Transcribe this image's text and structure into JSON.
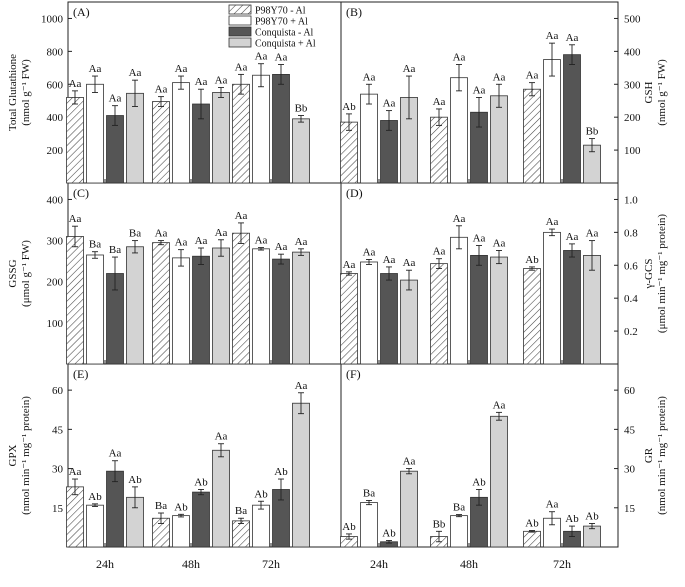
{
  "legend": [
    {
      "name": "P98Y70 - Al",
      "fill": "hatch"
    },
    {
      "name": "P98Y70 + Al",
      "fill": "#ffffff"
    },
    {
      "name": "Conquista - Al",
      "fill": "#555555"
    },
    {
      "name": "Conquista + Al",
      "fill": "#d3d3d3"
    }
  ],
  "x_tick_labels": [
    "24h",
    "48h",
    "72h"
  ],
  "chart_data": [
    {
      "panel": "(A)",
      "type": "bar",
      "axis_side": "left",
      "ylabel": "Total Glutathione",
      "yunit": "(nmol g⁻¹ FW)",
      "ylim": [
        0,
        1100
      ],
      "yticks": [
        "200",
        "400",
        "600",
        "800",
        "1000"
      ],
      "categories": [
        "24h",
        "48h",
        "72h"
      ],
      "series": [
        {
          "name": "P98Y70 - Al",
          "values": [
            520,
            495,
            600
          ],
          "errors": [
            40,
            30,
            60
          ],
          "labels": [
            "Aa",
            "Aa",
            "Aa"
          ]
        },
        {
          "name": "P98Y70 + Al",
          "values": [
            600,
            610,
            655
          ],
          "errors": [
            50,
            40,
            70
          ],
          "labels": [
            "Aa",
            "Aa",
            "Aa"
          ]
        },
        {
          "name": "Conquista - Al",
          "values": [
            410,
            480,
            660
          ],
          "errors": [
            60,
            90,
            60
          ],
          "labels": [
            "Aa",
            "Aa",
            "Aa"
          ]
        },
        {
          "name": "Conquista + Al",
          "values": [
            545,
            550,
            390
          ],
          "errors": [
            80,
            30,
            20
          ],
          "labels": [
            "Aa",
            "Aa",
            "Bb"
          ]
        }
      ]
    },
    {
      "panel": "(B)",
      "type": "bar",
      "axis_side": "right",
      "ylabel": "GSH",
      "yunit": "(nmol g⁻¹ FW)",
      "ylim": [
        0,
        550
      ],
      "yticks": [
        "100",
        "200",
        "300",
        "400",
        "500"
      ],
      "categories": [
        "24h",
        "48h",
        "72h"
      ],
      "series": [
        {
          "name": "P98Y70 - Al",
          "values": [
            185,
            200,
            285
          ],
          "errors": [
            25,
            25,
            20
          ],
          "labels": [
            "Ab",
            "Aa",
            "Aa"
          ]
        },
        {
          "name": "P98Y70 + Al",
          "values": [
            270,
            320,
            375
          ],
          "errors": [
            30,
            40,
            50
          ],
          "labels": [
            "Aa",
            "Aa",
            "Aa"
          ]
        },
        {
          "name": "Conquista - Al",
          "values": [
            190,
            215,
            390
          ],
          "errors": [
            30,
            45,
            30
          ],
          "labels": [
            "Aa",
            "Aa",
            "Aa"
          ]
        },
        {
          "name": "Conquista + Al",
          "values": [
            260,
            265,
            115
          ],
          "errors": [
            65,
            35,
            20
          ],
          "labels": [
            "Aa",
            "Aa",
            "Bb"
          ]
        }
      ]
    },
    {
      "panel": "(C)",
      "type": "bar",
      "axis_side": "left",
      "ylabel": "GSSG",
      "yunit": "(μmol g⁻¹ FW)",
      "ylim": [
        0,
        440
      ],
      "yticks": [
        "100",
        "200",
        "300",
        "400"
      ],
      "categories": [
        "24h",
        "48h",
        "72h"
      ],
      "series": [
        {
          "name": "P98Y70 - Al",
          "values": [
            310,
            295,
            318
          ],
          "errors": [
            25,
            5,
            25
          ],
          "labels": [
            "Aa",
            "Aa",
            "Aa"
          ]
        },
        {
          "name": "P98Y70 + Al",
          "values": [
            265,
            258,
            280
          ],
          "errors": [
            8,
            20,
            3
          ],
          "labels": [
            "Ba",
            "Aa",
            "Aa"
          ]
        },
        {
          "name": "Conquista - Al",
          "values": [
            220,
            262,
            255
          ],
          "errors": [
            40,
            20,
            12
          ],
          "labels": [
            "Ba",
            "Aa",
            "Aa"
          ]
        },
        {
          "name": "Conquista + Al",
          "values": [
            285,
            282,
            272
          ],
          "errors": [
            15,
            20,
            8
          ],
          "labels": [
            "Ba",
            "Aa",
            "Aa"
          ]
        }
      ]
    },
    {
      "panel": "(D)",
      "type": "bar",
      "axis_side": "right",
      "ylabel": "γ-GCS",
      "yunit": "(μmol min⁻¹ mg⁻¹ protein)",
      "ylim": [
        0,
        1.1
      ],
      "yticks": [
        "0.2",
        "0.4",
        "0.6",
        "0.8",
        "1.0"
      ],
      "categories": [
        "24h",
        "48h",
        "72h"
      ],
      "series": [
        {
          "name": "P98Y70 - Al",
          "values": [
            0.55,
            0.61,
            0.58
          ],
          "errors": [
            0.01,
            0.03,
            0.01
          ],
          "labels": [
            "Aa",
            "Aa",
            "Ab"
          ]
        },
        {
          "name": "P98Y70 + Al",
          "values": [
            0.62,
            0.77,
            0.8
          ],
          "errors": [
            0.015,
            0.07,
            0.02
          ],
          "labels": [
            "Aa",
            "Aa",
            "Aa"
          ]
        },
        {
          "name": "Conquista - Al",
          "values": [
            0.55,
            0.66,
            0.69
          ],
          "errors": [
            0.04,
            0.06,
            0.04
          ],
          "labels": [
            "Aa",
            "Aa",
            "Aa"
          ]
        },
        {
          "name": "Conquista + Al",
          "values": [
            0.51,
            0.65,
            0.66
          ],
          "errors": [
            0.06,
            0.04,
            0.09
          ],
          "labels": [
            "Aa",
            "Aa",
            "Aa"
          ]
        }
      ]
    },
    {
      "panel": "(E)",
      "type": "bar",
      "axis_side": "left",
      "ylabel": "GPX",
      "yunit": "(nmol min⁻¹ mg⁻¹ protein)",
      "ylim": [
        0,
        70
      ],
      "yticks": [
        "15",
        "30",
        "45",
        "60"
      ],
      "categories": [
        "24h",
        "48h",
        "72h"
      ],
      "series": [
        {
          "name": "P98Y70 - Al",
          "values": [
            23,
            11,
            10
          ],
          "errors": [
            3,
            2,
            1
          ],
          "labels": [
            "Aa",
            "Ba",
            "Ba"
          ]
        },
        {
          "name": "P98Y70 + Al",
          "values": [
            16,
            12,
            16
          ],
          "errors": [
            0.5,
            0.5,
            1.5
          ],
          "labels": [
            "Ab",
            "Ab",
            "Ab"
          ]
        },
        {
          "name": "Conquista - Al",
          "values": [
            29,
            21,
            22
          ],
          "errors": [
            4,
            1,
            4
          ],
          "labels": [
            "Aa",
            "Ab",
            "Ab"
          ]
        },
        {
          "name": "Conquista + Al",
          "values": [
            19,
            37,
            55
          ],
          "errors": [
            4,
            2.5,
            4
          ],
          "labels": [
            "Ab",
            "Aa",
            "Aa"
          ]
        }
      ]
    },
    {
      "panel": "(F)",
      "type": "bar",
      "axis_side": "right",
      "ylabel": "GR",
      "yunit": "(nmol min⁻¹ mg⁻¹ protein)",
      "ylim": [
        0,
        70
      ],
      "yticks": [
        "15",
        "30",
        "45",
        "60"
      ],
      "categories": [
        "24h",
        "48h",
        "72h"
      ],
      "series": [
        {
          "name": "P98Y70 - Al",
          "values": [
            4,
            4,
            6
          ],
          "errors": [
            1,
            2,
            0.3
          ],
          "labels": [
            "Ab",
            "Bb",
            "Ab"
          ]
        },
        {
          "name": "P98Y70 + Al",
          "values": [
            17,
            12,
            11
          ],
          "errors": [
            0.8,
            0.4,
            2.5
          ],
          "labels": [
            "Ba",
            "Ba",
            "Aa"
          ]
        },
        {
          "name": "Conquista - Al",
          "values": [
            2,
            19,
            6
          ],
          "errors": [
            0.5,
            3,
            2
          ],
          "labels": [
            "Ab",
            "Ab",
            "Ab"
          ]
        },
        {
          "name": "Conquista + Al",
          "values": [
            29,
            50,
            8
          ],
          "errors": [
            1,
            1.5,
            1
          ],
          "labels": [
            "Aa",
            "Aa",
            "Ab"
          ]
        }
      ]
    }
  ]
}
